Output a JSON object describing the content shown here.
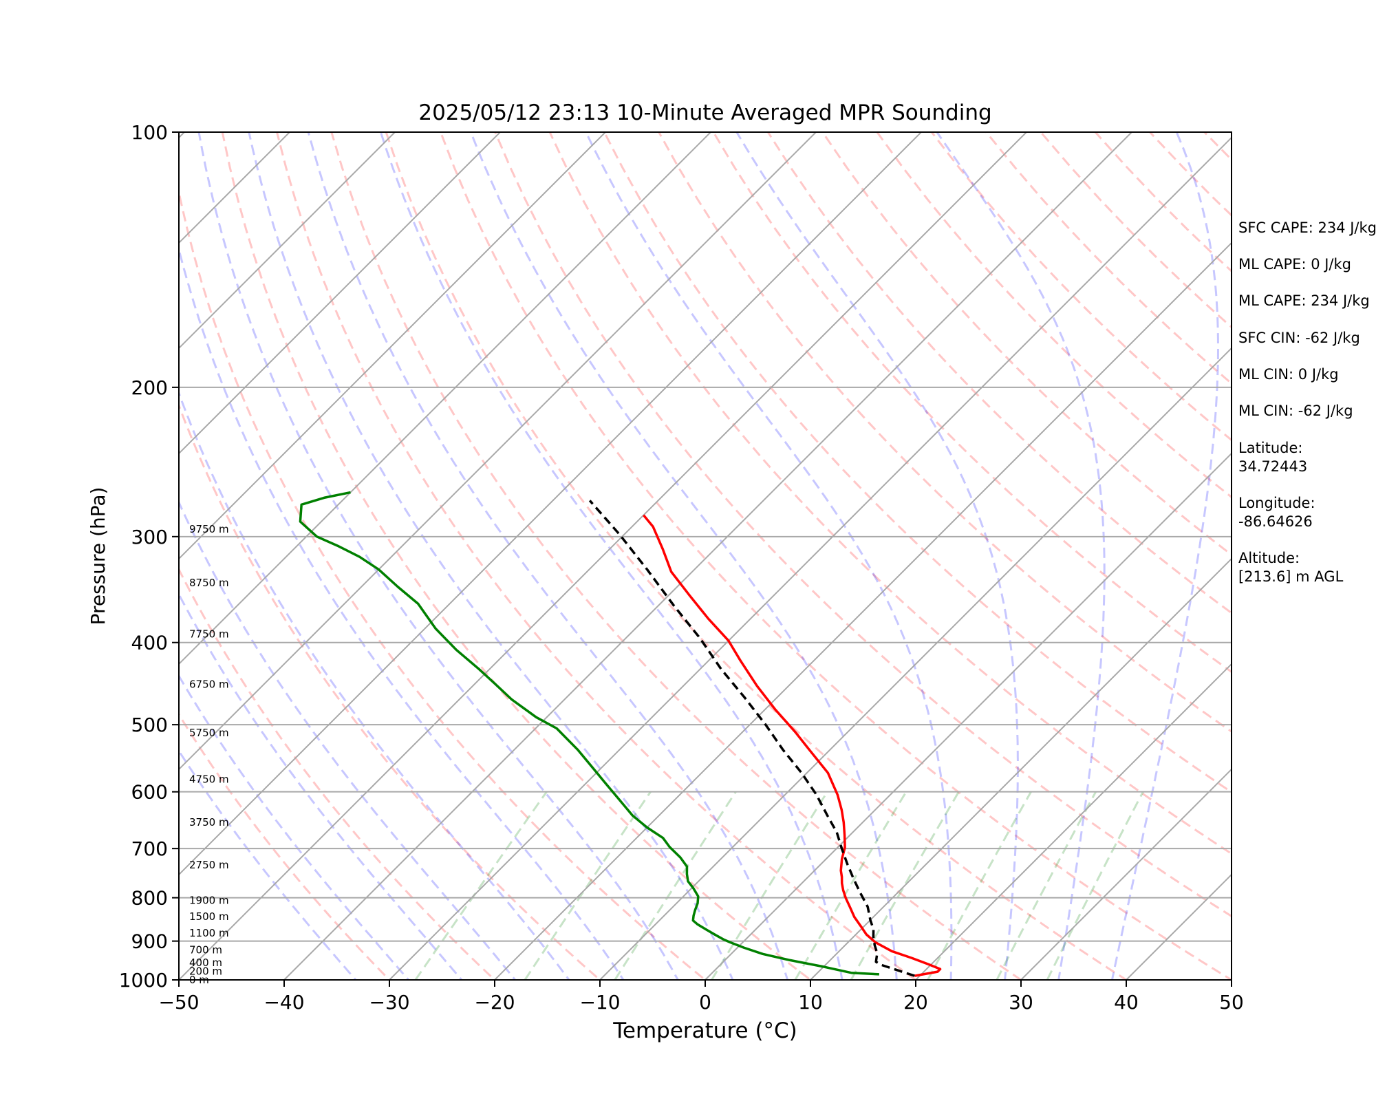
{
  "chart_data": {
    "type": "line",
    "subtype": "skew-t log-p sounding",
    "title": "2025/05/12 23:13 10-Minute Averaged MPR Sounding",
    "xlabel": "Temperature (°C)",
    "ylabel": "Pressure (hPa)",
    "xlim": [
      -50,
      50
    ],
    "ylim": [
      1000,
      100
    ],
    "y_scale": "log",
    "x_ticks": [
      "−50",
      "−40",
      "−30",
      "−20",
      "−10",
      "0",
      "10",
      "20",
      "30",
      "40",
      "50"
    ],
    "y_ticks": [
      "1000",
      "900",
      "800",
      "700",
      "600",
      "500",
      "400",
      "300",
      "200",
      "100"
    ],
    "height_labels": [
      {
        "label": "0 m",
        "p": 1000
      },
      {
        "label": "200 m",
        "p": 977
      },
      {
        "label": "400 m",
        "p": 954
      },
      {
        "label": "700 m",
        "p": 922
      },
      {
        "label": "1100 m",
        "p": 881
      },
      {
        "label": "1500 m",
        "p": 842
      },
      {
        "label": "1900 m",
        "p": 806
      },
      {
        "label": "2750 m",
        "p": 732
      },
      {
        "label": "3750 m",
        "p": 652
      },
      {
        "label": "4750 m",
        "p": 580
      },
      {
        "label": "5750 m",
        "p": 511
      },
      {
        "label": "6750 m",
        "p": 448
      },
      {
        "label": "7750 m",
        "p": 391
      },
      {
        "label": "8750 m",
        "p": 340
      },
      {
        "label": "9750 m",
        "p": 294
      }
    ],
    "series": [
      {
        "role": "temperature",
        "color": "#ff0000",
        "points": [
          [
            19.5,
            989
          ],
          [
            21.3,
            978
          ],
          [
            21.3,
            971
          ],
          [
            19.8,
            959
          ],
          [
            17.5,
            942
          ],
          [
            15,
            925
          ],
          [
            12.6,
            903
          ],
          [
            11,
            884
          ],
          [
            9.8,
            866
          ],
          [
            8.2,
            843
          ],
          [
            6.8,
            820
          ],
          [
            5.6,
            801
          ],
          [
            4.6,
            784
          ],
          [
            3.8,
            769
          ],
          [
            3.2,
            756
          ],
          [
            2.5,
            743
          ],
          [
            1.5,
            720
          ],
          [
            0.7,
            698
          ],
          [
            -0.5,
            675
          ],
          [
            -1.8,
            652
          ],
          [
            -3.2,
            630
          ],
          [
            -5,
            605
          ],
          [
            -8,
            570
          ],
          [
            -12,
            535
          ],
          [
            -15,
            510
          ],
          [
            -19,
            480
          ],
          [
            -23,
            450
          ],
          [
            -27,
            420
          ],
          [
            -30,
            398
          ],
          [
            -34,
            375
          ],
          [
            -38,
            352
          ],
          [
            -42,
            330
          ],
          [
            -45,
            310
          ],
          [
            -48,
            292
          ],
          [
            -50,
            283
          ]
        ]
      },
      {
        "role": "dewpoint",
        "color": "#008000",
        "points": [
          [
            16,
            985
          ],
          [
            13.2,
            981
          ],
          [
            10,
            965
          ],
          [
            6.2,
            948
          ],
          [
            3,
            932
          ],
          [
            0.6,
            916
          ],
          [
            -1.2,
            903
          ],
          [
            -2.1,
            896
          ],
          [
            -3.2,
            886
          ],
          [
            -4.5,
            874
          ],
          [
            -6,
            860
          ],
          [
            -6.8,
            851
          ],
          [
            -7.2,
            840
          ],
          [
            -7.6,
            827
          ],
          [
            -8,
            812
          ],
          [
            -8.6,
            797
          ],
          [
            -9.8,
            780
          ],
          [
            -11,
            765
          ],
          [
            -11.8,
            750
          ],
          [
            -12.5,
            735
          ],
          [
            -14,
            717
          ],
          [
            -16,
            697
          ],
          [
            -17.5,
            680
          ],
          [
            -20,
            661
          ],
          [
            -22.5,
            640
          ],
          [
            -25.8,
            608
          ],
          [
            -28.5,
            583
          ],
          [
            -30.5,
            565
          ],
          [
            -34,
            535
          ],
          [
            -38,
            505
          ],
          [
            -41,
            490
          ],
          [
            -45,
            467
          ],
          [
            -48,
            448
          ],
          [
            -51,
            430
          ],
          [
            -55,
            408
          ],
          [
            -59,
            385
          ],
          [
            -63,
            360
          ],
          [
            -66.5,
            344
          ],
          [
            -70,
            328
          ],
          [
            -73,
            317
          ],
          [
            -76,
            308
          ],
          [
            -79,
            300
          ],
          [
            -82,
            288
          ],
          [
            -83.5,
            275
          ],
          [
            -82,
            270
          ],
          [
            -80,
            266
          ]
        ]
      },
      {
        "role": "parcel profile",
        "color": "#000000",
        "style": "dashed",
        "points": [
          [
            19.5,
            989
          ],
          [
            15.3,
            960
          ],
          [
            14.5,
            952
          ],
          [
            13.8,
            930
          ],
          [
            12.8,
            910
          ],
          [
            11.9,
            890
          ],
          [
            11.2,
            872
          ],
          [
            10,
            850
          ],
          [
            8.5,
            820
          ],
          [
            6.5,
            790
          ],
          [
            4.5,
            760
          ],
          [
            2.5,
            730
          ],
          [
            0.5,
            700
          ],
          [
            -1.5,
            670
          ],
          [
            -4,
            640
          ],
          [
            -7,
            605
          ],
          [
            -10.5,
            570
          ],
          [
            -14.5,
            535
          ],
          [
            -18.5,
            500
          ],
          [
            -23,
            465
          ],
          [
            -28,
            430
          ],
          [
            -33,
            395
          ],
          [
            -38.5,
            362
          ],
          [
            -44.5,
            328
          ],
          [
            -50.5,
            298
          ],
          [
            -56.5,
            272
          ]
        ]
      }
    ],
    "background_lines": {
      "isotherms": "solid gray, skewed 45°",
      "dry_adiabats": "dashed red",
      "moist_adiabats": "dashed blue",
      "mixing_ratio_lines": "dashed green",
      "isobars": "solid gray"
    }
  },
  "info_panel": {
    "sfc_cape": "SFC CAPE: 234 J/kg",
    "ml_cape_1": "ML CAPE: 0 J/kg",
    "ml_cape_2": "ML CAPE: 234 J/kg",
    "sfc_cin": "SFC CIN: -62 J/kg",
    "ml_cin_1": "ML CIN: 0 J/kg",
    "ml_cin_2": "ML CIN: -62 J/kg",
    "latitude_label": "Latitude:",
    "latitude_value": "34.72443",
    "longitude_label": "Longitude:",
    "longitude_value": "-86.64626",
    "altitude_label": "Altitude:",
    "altitude_value": "[213.6] m AGL"
  }
}
